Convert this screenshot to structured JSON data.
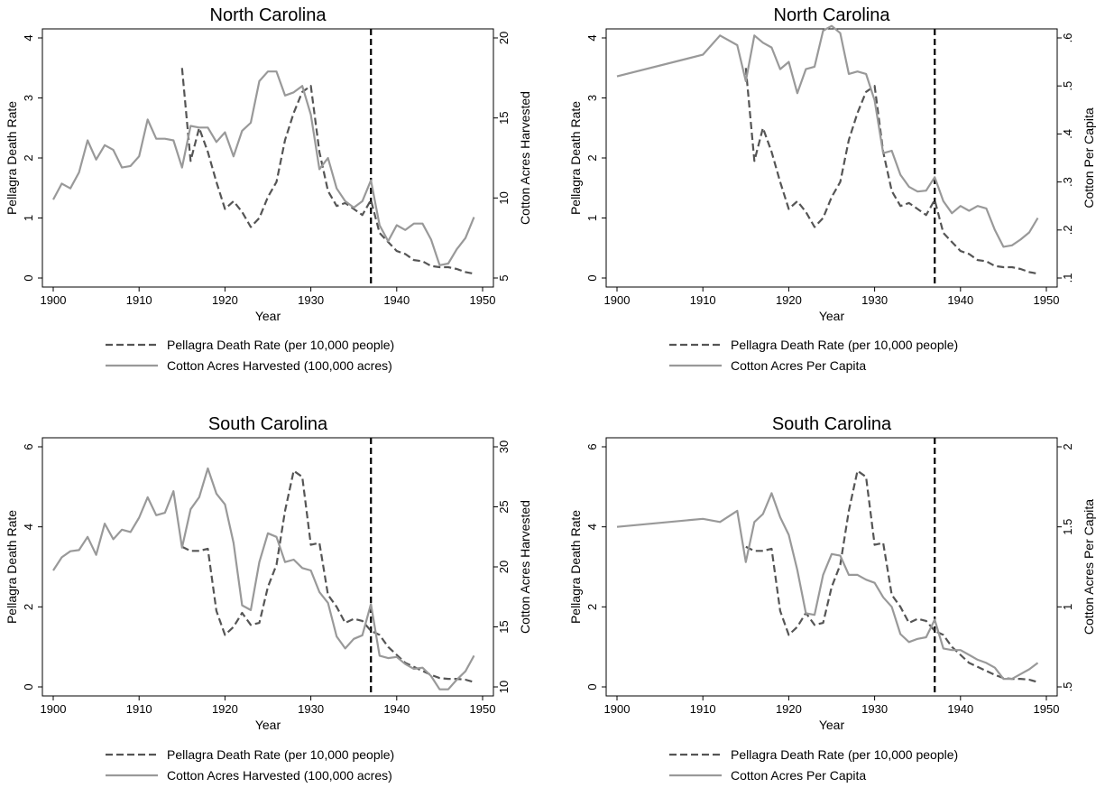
{
  "chart_data": [
    {
      "type": "line",
      "title": "North Carolina",
      "xlabel": "Year",
      "ylabel": "Pellagra Death Rate",
      "y2label": "Cotton Acres Harvested",
      "xlim": [
        1900,
        1950
      ],
      "xticks": [
        1900,
        1910,
        1920,
        1930,
        1940,
        1950
      ],
      "xtick_labels": [
        "1900",
        "1910",
        "1920",
        "1930",
        "1940",
        "1950"
      ],
      "ylim": [
        0,
        4
      ],
      "yticks": [
        0,
        1,
        2,
        3,
        4
      ],
      "ytick_labels": [
        "0",
        "1",
        "2",
        "3",
        "4"
      ],
      "y2lim": [
        5,
        20
      ],
      "y2ticks": [
        5,
        10,
        15,
        20
      ],
      "y2tick_labels": [
        "5",
        "10",
        "15",
        "20"
      ],
      "vline_x": 1937,
      "legend_position": "bottom",
      "series": [
        {
          "name": "Pellagra Death Rate (per 10,000 people)",
          "axis": "left",
          "style": "dashed",
          "color": "#555555",
          "x": [
            1915,
            1916,
            1917,
            1918,
            1919,
            1920,
            1921,
            1922,
            1923,
            1924,
            1925,
            1926,
            1927,
            1928,
            1929,
            1930,
            1931,
            1932,
            1933,
            1934,
            1935,
            1936,
            1937,
            1938,
            1939,
            1940,
            1941,
            1942,
            1943,
            1944,
            1945,
            1946,
            1947,
            1948,
            1949
          ],
          "y": [
            3.5,
            1.95,
            2.5,
            2.1,
            1.6,
            1.15,
            1.28,
            1.1,
            0.85,
            1.0,
            1.35,
            1.6,
            2.3,
            2.75,
            3.1,
            3.2,
            2.1,
            1.45,
            1.2,
            1.25,
            1.15,
            1.05,
            1.3,
            0.75,
            0.6,
            0.45,
            0.4,
            0.3,
            0.28,
            0.2,
            0.18,
            0.18,
            0.15,
            0.1,
            0.07
          ]
        },
        {
          "name": "Cotton Acres Harvested (100,000 acres)",
          "axis": "right",
          "style": "solid",
          "color": "#999999",
          "x": [
            1900,
            1901,
            1902,
            1903,
            1904,
            1905,
            1906,
            1907,
            1908,
            1909,
            1910,
            1911,
            1912,
            1913,
            1914,
            1915,
            1916,
            1917,
            1918,
            1919,
            1920,
            1921,
            1922,
            1923,
            1924,
            1925,
            1926,
            1927,
            1928,
            1929,
            1930,
            1931,
            1932,
            1933,
            1934,
            1935,
            1936,
            1937,
            1938,
            1939,
            1940,
            1941,
            1942,
            1943,
            1944,
            1945,
            1946,
            1947,
            1948,
            1949
          ],
          "y": [
            9.9,
            10.9,
            10.6,
            11.6,
            13.6,
            12.4,
            13.3,
            13.0,
            11.9,
            12.0,
            12.6,
            14.9,
            13.7,
            13.7,
            13.6,
            11.9,
            14.5,
            14.4,
            14.4,
            13.5,
            14.1,
            12.6,
            14.2,
            14.7,
            17.3,
            17.9,
            17.9,
            16.4,
            16.6,
            17.0,
            15.2,
            11.8,
            12.5,
            10.6,
            9.8,
            9.4,
            9.8,
            11.1,
            8.3,
            7.3,
            8.3,
            8.0,
            8.4,
            8.4,
            7.4,
            5.8,
            5.9,
            6.8,
            7.5,
            8.8
          ]
        }
      ]
    },
    {
      "type": "line",
      "title": "North Carolina",
      "xlabel": "Year",
      "ylabel": "Pellagra Death Rate",
      "y2label": "Cotton Per Capita",
      "xlim": [
        1900,
        1950
      ],
      "xticks": [
        1900,
        1910,
        1920,
        1930,
        1940,
        1950
      ],
      "xtick_labels": [
        "1900",
        "1910",
        "1920",
        "1930",
        "1940",
        "1950"
      ],
      "ylim": [
        0,
        4
      ],
      "yticks": [
        0,
        1,
        2,
        3,
        4
      ],
      "ytick_labels": [
        "0",
        "1",
        "2",
        "3",
        "4"
      ],
      "y2lim": [
        0.1,
        0.6
      ],
      "y2ticks": [
        0.1,
        0.2,
        0.3,
        0.4,
        0.5,
        0.6
      ],
      "y2tick_labels": [
        ".1",
        ".2",
        ".3",
        ".4",
        ".5",
        ".6"
      ],
      "vline_x": 1937,
      "legend_position": "bottom",
      "series": [
        {
          "name": "Pellagra Death Rate (per 10,000 people)",
          "axis": "left",
          "style": "dashed",
          "color": "#555555",
          "x": [
            1915,
            1916,
            1917,
            1918,
            1919,
            1920,
            1921,
            1922,
            1923,
            1924,
            1925,
            1926,
            1927,
            1928,
            1929,
            1930,
            1931,
            1932,
            1933,
            1934,
            1935,
            1936,
            1937,
            1938,
            1939,
            1940,
            1941,
            1942,
            1943,
            1944,
            1945,
            1946,
            1947,
            1948,
            1949
          ],
          "y": [
            3.5,
            1.95,
            2.5,
            2.1,
            1.6,
            1.15,
            1.28,
            1.1,
            0.85,
            1.0,
            1.35,
            1.6,
            2.3,
            2.75,
            3.1,
            3.2,
            2.1,
            1.45,
            1.2,
            1.25,
            1.15,
            1.05,
            1.3,
            0.75,
            0.6,
            0.45,
            0.4,
            0.3,
            0.28,
            0.2,
            0.18,
            0.18,
            0.15,
            0.1,
            0.07
          ]
        },
        {
          "name": "Cotton Acres Per Capita",
          "axis": "right",
          "style": "solid",
          "color": "#999999",
          "x": [
            1900,
            1910,
            1912,
            1914,
            1915,
            1916,
            1917,
            1918,
            1919,
            1920,
            1921,
            1922,
            1923,
            1924,
            1925,
            1926,
            1927,
            1928,
            1929,
            1930,
            1931,
            1932,
            1933,
            1934,
            1935,
            1936,
            1937,
            1938,
            1939,
            1940,
            1941,
            1942,
            1943,
            1944,
            1945,
            1946,
            1947,
            1948,
            1949
          ],
          "y": [
            0.52,
            0.565,
            0.605,
            0.585,
            0.51,
            0.605,
            0.59,
            0.58,
            0.535,
            0.55,
            0.485,
            0.535,
            0.54,
            0.615,
            0.625,
            0.61,
            0.525,
            0.53,
            0.525,
            0.47,
            0.36,
            0.365,
            0.315,
            0.29,
            0.28,
            0.282,
            0.31,
            0.26,
            0.235,
            0.25,
            0.24,
            0.25,
            0.245,
            0.2,
            0.165,
            0.168,
            0.18,
            0.195,
            0.225
          ]
        }
      ]
    },
    {
      "type": "line",
      "title": "South Carolina",
      "xlabel": "Year",
      "ylabel": "Pellagra Death Rate",
      "y2label": "Cotton Acres Harvested",
      "xlim": [
        1900,
        1950
      ],
      "xticks": [
        1900,
        1910,
        1920,
        1930,
        1940,
        1950
      ],
      "xtick_labels": [
        "1900",
        "1910",
        "1920",
        "1930",
        "1940",
        "1950"
      ],
      "ylim": [
        0,
        6
      ],
      "yticks": [
        0,
        2,
        4,
        6
      ],
      "ytick_labels": [
        "0",
        "2",
        "4",
        "6"
      ],
      "y2lim": [
        10,
        30
      ],
      "y2ticks": [
        10,
        15,
        20,
        25,
        30
      ],
      "y2tick_labels": [
        "10",
        "15",
        "20",
        "25",
        "30"
      ],
      "vline_x": 1937,
      "legend_position": "bottom",
      "series": [
        {
          "name": "Pellagra Death Rate (per 10,000 people)",
          "axis": "left",
          "style": "dashed",
          "color": "#555555",
          "x": [
            1915,
            1916,
            1917,
            1918,
            1919,
            1920,
            1921,
            1922,
            1923,
            1924,
            1925,
            1926,
            1927,
            1928,
            1929,
            1930,
            1931,
            1932,
            1933,
            1934,
            1935,
            1936,
            1937,
            1938,
            1939,
            1940,
            1941,
            1942,
            1943,
            1944,
            1945,
            1946,
            1947,
            1948,
            1949
          ],
          "y": [
            3.5,
            3.4,
            3.4,
            3.45,
            1.9,
            1.3,
            1.5,
            1.85,
            1.55,
            1.6,
            2.5,
            3.05,
            4.4,
            5.4,
            5.25,
            3.55,
            3.6,
            2.3,
            2.0,
            1.6,
            1.7,
            1.65,
            1.4,
            1.3,
            1.0,
            0.8,
            0.6,
            0.5,
            0.4,
            0.3,
            0.22,
            0.2,
            0.2,
            0.18,
            0.12
          ]
        },
        {
          "name": "Cotton Acres Harvested (100,000 acres)",
          "axis": "right",
          "style": "solid",
          "color": "#999999",
          "x": [
            1900,
            1901,
            1902,
            1903,
            1904,
            1905,
            1906,
            1907,
            1908,
            1909,
            1910,
            1911,
            1912,
            1913,
            1914,
            1915,
            1916,
            1917,
            1918,
            1919,
            1920,
            1921,
            1922,
            1923,
            1924,
            1925,
            1926,
            1927,
            1928,
            1929,
            1930,
            1931,
            1932,
            1933,
            1934,
            1935,
            1936,
            1937,
            1938,
            1939,
            1940,
            1941,
            1942,
            1943,
            1944,
            1945,
            1946,
            1947,
            1948,
            1949
          ],
          "y": [
            19.7,
            20.8,
            21.3,
            21.4,
            22.5,
            21.0,
            23.6,
            22.3,
            23.1,
            22.9,
            24.1,
            25.8,
            24.3,
            24.5,
            26.3,
            21.6,
            24.8,
            25.8,
            28.2,
            26.1,
            25.2,
            22.0,
            16.8,
            16.4,
            20.4,
            22.8,
            22.5,
            20.4,
            20.6,
            19.9,
            19.7,
            17.9,
            17.0,
            14.2,
            13.2,
            14.0,
            14.3,
            16.9,
            12.6,
            12.4,
            12.5,
            11.9,
            11.5,
            11.6,
            10.9,
            9.8,
            9.8,
            10.6,
            11.3,
            12.6
          ]
        }
      ]
    },
    {
      "type": "line",
      "title": "South Carolina",
      "xlabel": "Year",
      "ylabel": "Pellagra Death Rate",
      "y2label": "Cotton Acres Per Capita",
      "xlim": [
        1900,
        1950
      ],
      "xticks": [
        1900,
        1910,
        1920,
        1930,
        1940,
        1950
      ],
      "xtick_labels": [
        "1900",
        "1910",
        "1920",
        "1930",
        "1940",
        "1950"
      ],
      "ylim": [
        0,
        6
      ],
      "yticks": [
        0,
        2,
        4,
        6
      ],
      "ytick_labels": [
        "0",
        "2",
        "4",
        "6"
      ],
      "y2lim": [
        0.5,
        2
      ],
      "y2ticks": [
        0.5,
        1,
        1.5,
        2
      ],
      "y2tick_labels": [
        ".5",
        "1",
        "1.5",
        "2"
      ],
      "vline_x": 1937,
      "legend_position": "bottom",
      "series": [
        {
          "name": "Pellagra Death Rate (per 10,000 people)",
          "axis": "left",
          "style": "dashed",
          "color": "#555555",
          "x": [
            1915,
            1916,
            1917,
            1918,
            1919,
            1920,
            1921,
            1922,
            1923,
            1924,
            1925,
            1926,
            1927,
            1928,
            1929,
            1930,
            1931,
            1932,
            1933,
            1934,
            1935,
            1936,
            1937,
            1938,
            1939,
            1940,
            1941,
            1942,
            1943,
            1944,
            1945,
            1946,
            1947,
            1948,
            1949
          ],
          "y": [
            3.5,
            3.4,
            3.4,
            3.45,
            1.9,
            1.3,
            1.5,
            1.85,
            1.55,
            1.6,
            2.5,
            3.05,
            4.4,
            5.4,
            5.25,
            3.55,
            3.6,
            2.3,
            2.0,
            1.6,
            1.7,
            1.65,
            1.4,
            1.3,
            1.0,
            0.8,
            0.6,
            0.5,
            0.4,
            0.3,
            0.22,
            0.2,
            0.2,
            0.18,
            0.12
          ]
        },
        {
          "name": "Cotton Acres Per Capita",
          "axis": "right",
          "style": "solid",
          "color": "#999999",
          "x": [
            1900,
            1910,
            1912,
            1914,
            1915,
            1916,
            1917,
            1918,
            1919,
            1920,
            1921,
            1922,
            1923,
            1924,
            1925,
            1926,
            1927,
            1928,
            1929,
            1930,
            1931,
            1932,
            1933,
            1934,
            1935,
            1936,
            1937,
            1938,
            1939,
            1940,
            1941,
            1942,
            1943,
            1944,
            1945,
            1946,
            1947,
            1948,
            1949
          ],
          "y": [
            1.5,
            1.55,
            1.53,
            1.6,
            1.28,
            1.53,
            1.58,
            1.71,
            1.56,
            1.45,
            1.23,
            0.96,
            0.95,
            1.2,
            1.33,
            1.32,
            1.2,
            1.2,
            1.17,
            1.15,
            1.06,
            1.0,
            0.83,
            0.78,
            0.8,
            0.81,
            0.92,
            0.74,
            0.73,
            0.73,
            0.7,
            0.67,
            0.65,
            0.62,
            0.55,
            0.55,
            0.58,
            0.61,
            0.65
          ]
        }
      ]
    }
  ]
}
